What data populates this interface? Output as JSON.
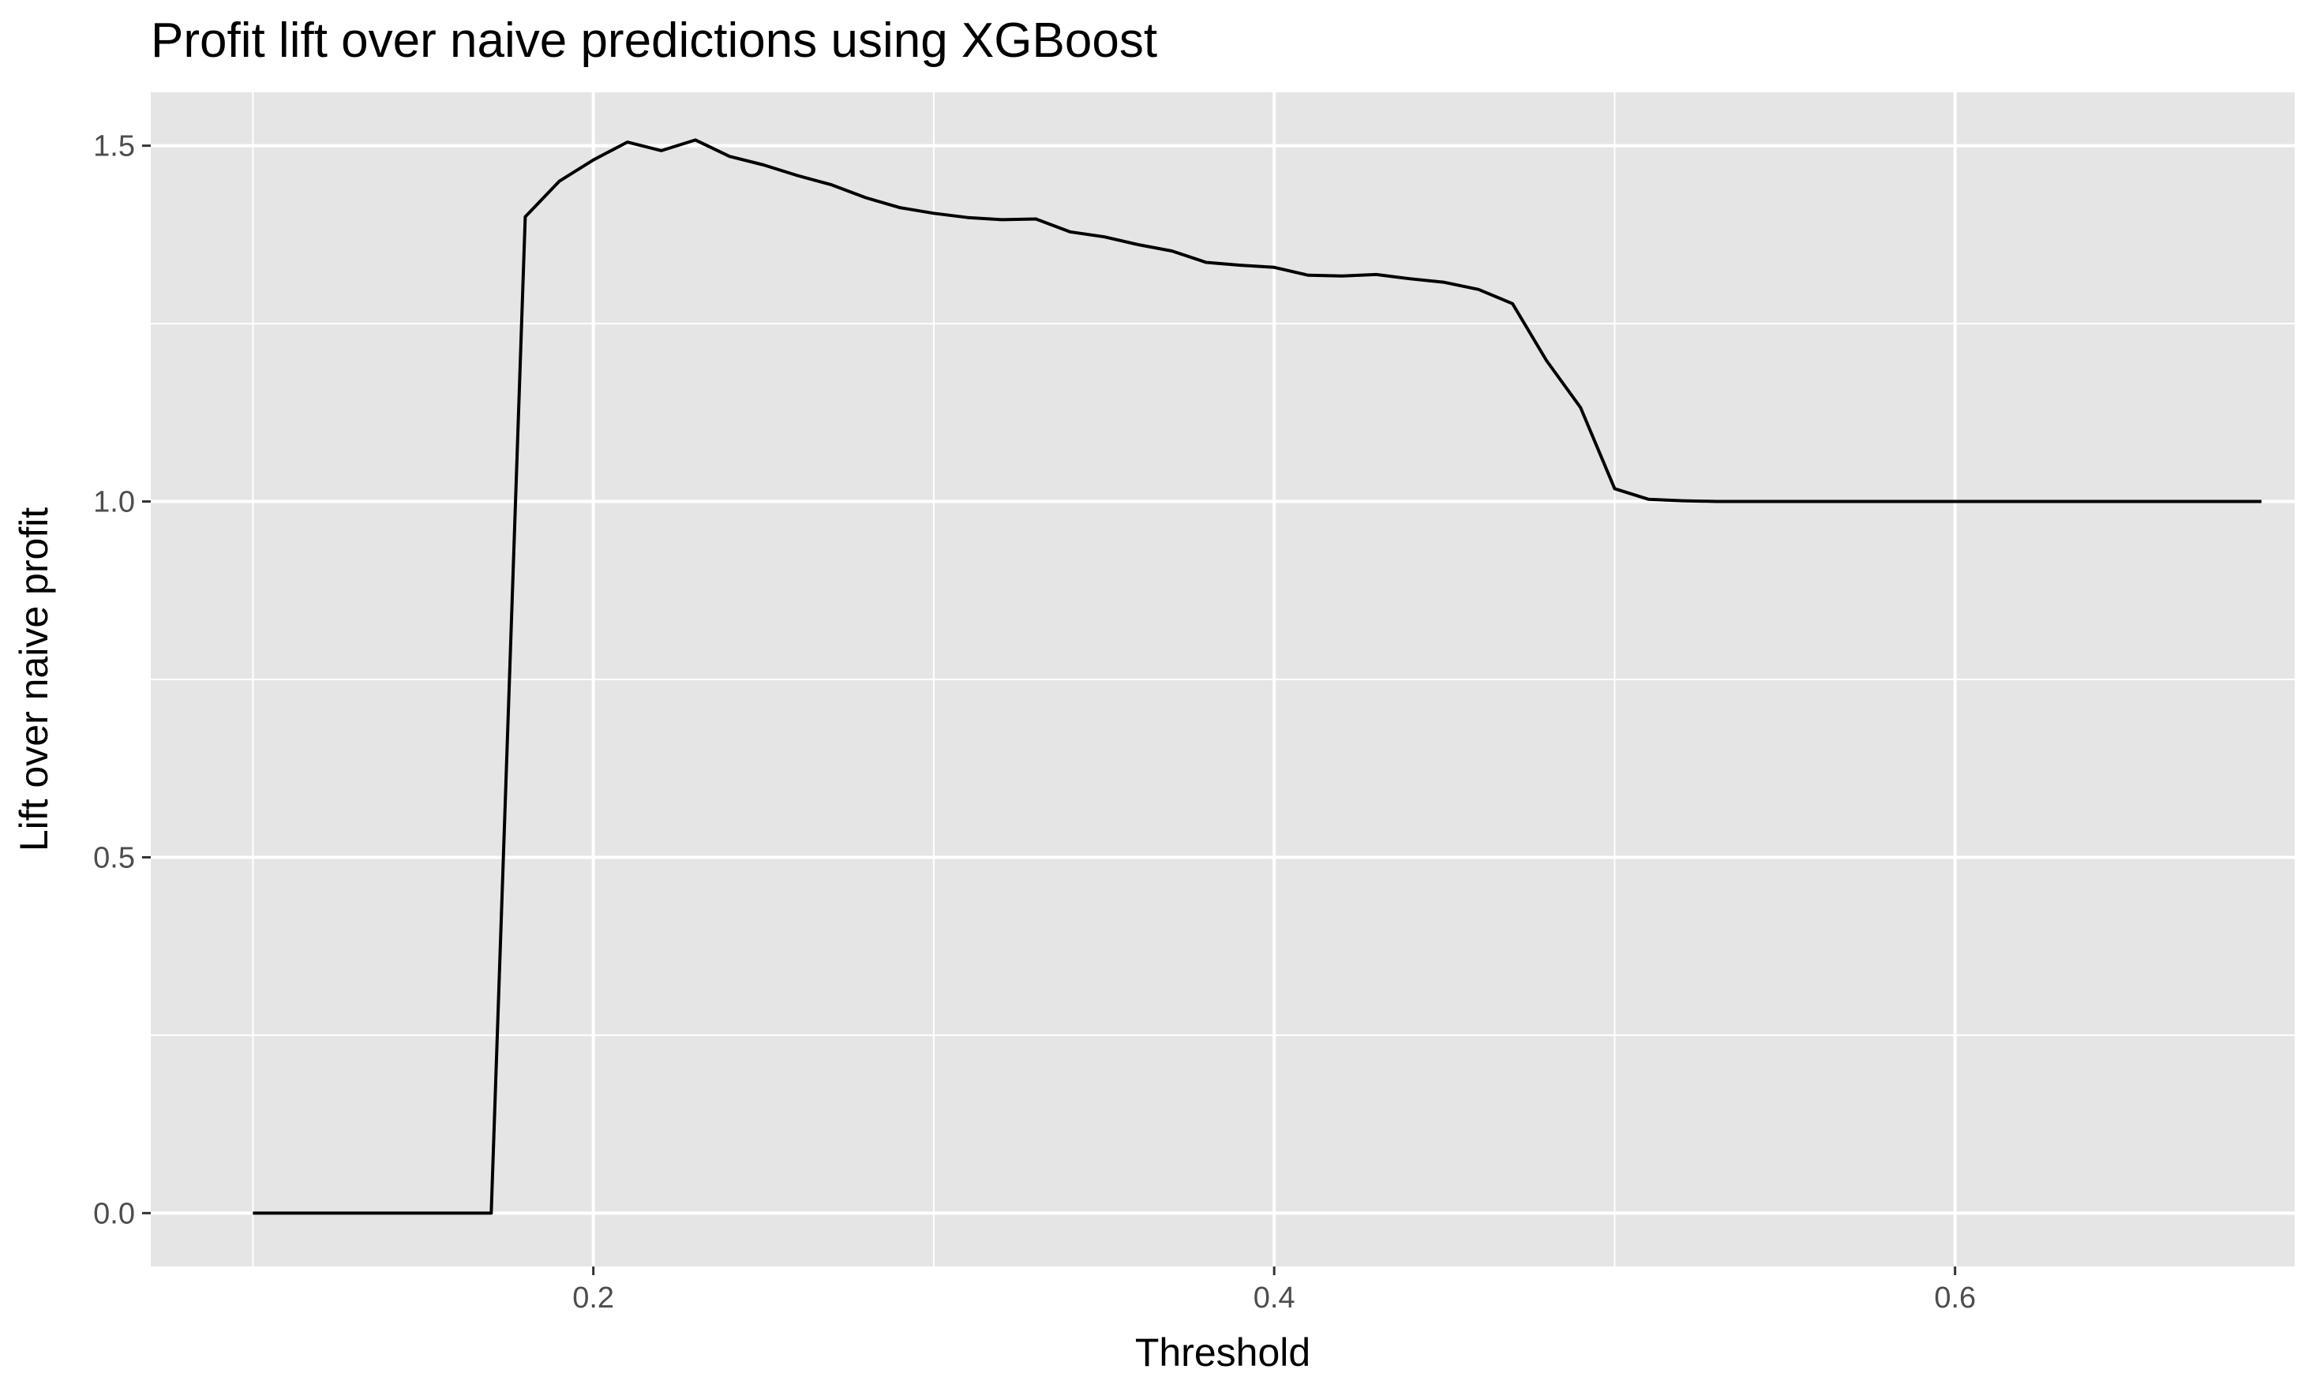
{
  "chart_data": {
    "type": "line",
    "title": "Profit lift over naive predictions using XGBoost",
    "xlabel": "Threshold",
    "ylabel": "Lift over naive profit",
    "xlim": [
      0.07,
      0.7
    ],
    "ylim": [
      -0.075,
      1.575
    ],
    "x_ticks": [
      0.2,
      0.4,
      0.6
    ],
    "x_tick_labels": [
      "0.2",
      "0.4",
      "0.6"
    ],
    "x_minor_ticks": [
      0.1,
      0.3,
      0.5,
      0.7
    ],
    "y_ticks": [
      0.0,
      0.5,
      1.0,
      1.5
    ],
    "y_tick_labels": [
      "0.0",
      "0.5",
      "1.0",
      "1.5"
    ],
    "y_minor_ticks": [
      0.25,
      0.75,
      1.25
    ],
    "grid": true,
    "panel_background": "#e5e5e5",
    "grid_color": "#ffffff",
    "line_color": "#000000",
    "series": [
      {
        "x": [
          0.1,
          0.11,
          0.12,
          0.13,
          0.14,
          0.15,
          0.16,
          0.17,
          0.18,
          0.19,
          0.2,
          0.21,
          0.22,
          0.23,
          0.24,
          0.25,
          0.26,
          0.27,
          0.28,
          0.29,
          0.3,
          0.31,
          0.32,
          0.33,
          0.34,
          0.35,
          0.36,
          0.37,
          0.38,
          0.39,
          0.4,
          0.41,
          0.42,
          0.43,
          0.44,
          0.45,
          0.46,
          0.47,
          0.48,
          0.49,
          0.5,
          0.51,
          0.52,
          0.53,
          0.54,
          0.55,
          0.56,
          0.57,
          0.58,
          0.59,
          0.6,
          0.61,
          0.62,
          0.63,
          0.64,
          0.65,
          0.66,
          0.67,
          0.68,
          0.69
        ],
        "values": [
          0.0,
          0.0,
          0.0,
          0.0,
          0.0,
          0.0,
          0.0,
          0.0,
          1.4,
          1.45,
          1.48,
          1.505,
          1.493,
          1.508,
          1.485,
          1.473,
          1.458,
          1.445,
          1.427,
          1.413,
          1.405,
          1.399,
          1.396,
          1.397,
          1.379,
          1.372,
          1.361,
          1.352,
          1.336,
          1.332,
          1.329,
          1.318,
          1.317,
          1.319,
          1.313,
          1.308,
          1.298,
          1.278,
          1.198,
          1.132,
          1.018,
          1.003,
          1.001,
          1.0,
          1.0,
          1.0,
          1.0,
          1.0,
          1.0,
          1.0,
          1.0,
          1.0,
          1.0,
          1.0,
          1.0,
          1.0,
          1.0,
          1.0,
          1.0,
          1.0
        ]
      }
    ]
  }
}
